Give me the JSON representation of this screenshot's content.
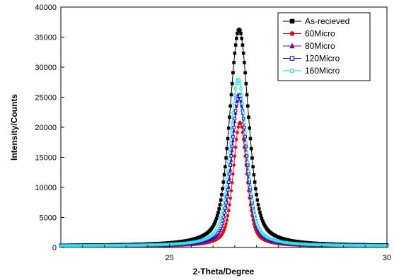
{
  "chart_data": {
    "type": "line",
    "title": "",
    "xlabel": "2-Theta/Degree",
    "ylabel": "Intensity/Counts",
    "xlim": [
      22.5,
      30
    ],
    "ylim": [
      0,
      40000
    ],
    "x_ticks": [
      25,
      30
    ],
    "y_ticks": [
      0,
      5000,
      10000,
      15000,
      20000,
      25000,
      30000,
      35000,
      40000
    ],
    "grid": false,
    "legend_position": "top-right",
    "series": [
      {
        "name": "As-recieved",
        "color": "#000000",
        "marker": "square-filled",
        "peak_x": 26.6,
        "peak_y": 36300,
        "baseline": 300,
        "width": 0.28
      },
      {
        "name": "60Micro",
        "color": "#ff0000",
        "marker": "circle-filled",
        "peak_x": 26.62,
        "peak_y": 20800,
        "baseline": 200,
        "width": 0.2
      },
      {
        "name": "80Micro",
        "color": "#8000a0",
        "marker": "triangle-filled",
        "peak_x": 26.6,
        "peak_y": 25200,
        "baseline": 250,
        "width": 0.22
      },
      {
        "name": "120Micro",
        "color": "#0000ff",
        "marker": "square-open",
        "peak_x": 26.6,
        "peak_y": 25400,
        "baseline": 250,
        "width": 0.23
      },
      {
        "name": "160Micro",
        "color": "#00e0e0",
        "marker": "circle-open",
        "peak_x": 26.58,
        "peak_y": 28000,
        "baseline": 250,
        "width": 0.24
      }
    ]
  }
}
